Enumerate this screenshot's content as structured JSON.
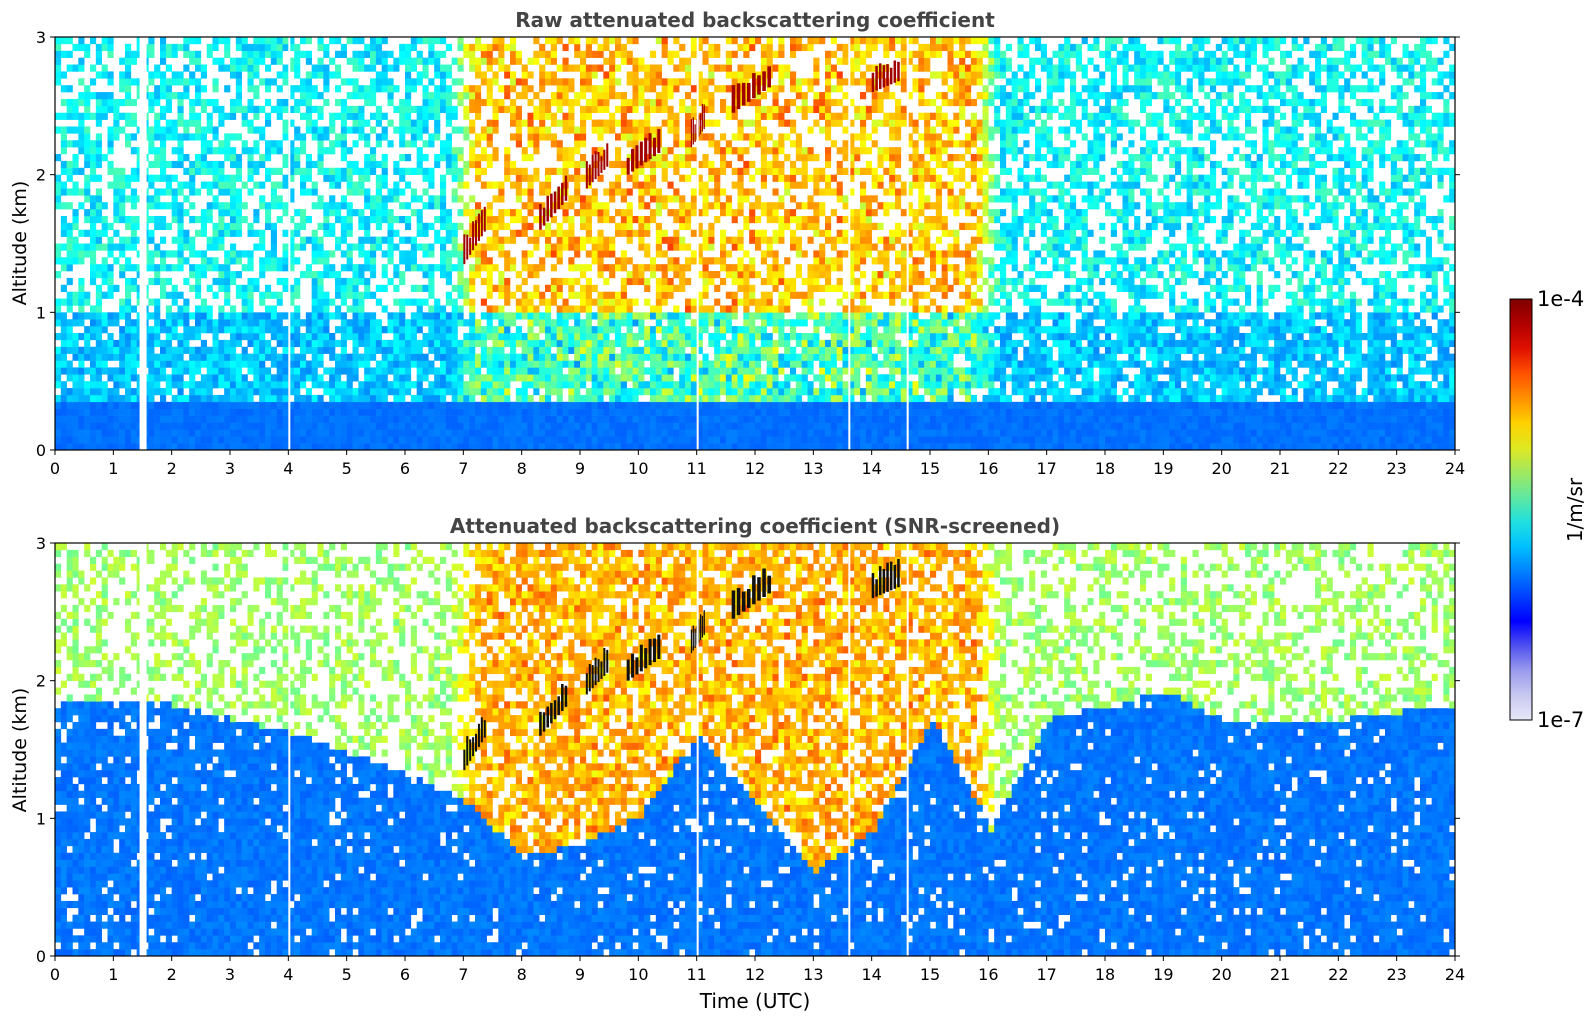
{
  "chart_data": [
    {
      "type": "heatmap",
      "title": "Raw attenuated backscattering coefficient",
      "xlabel": "",
      "ylabel": "Altitude (km)",
      "xlim": [
        0,
        24
      ],
      "ylim": [
        0,
        3
      ],
      "xticks": [
        "0",
        "1",
        "2",
        "3",
        "4",
        "5",
        "6",
        "7",
        "8",
        "9",
        "10",
        "11",
        "12",
        "13",
        "14",
        "15",
        "16",
        "17",
        "18",
        "19",
        "20",
        "21",
        "22",
        "23",
        "24"
      ],
      "yticks": [
        "0",
        "1",
        "2",
        "3"
      ],
      "colorscale": "jet",
      "cloud_layers": [
        {
          "start_time": 7.0,
          "end_time": 7.4,
          "alt_low": 1.35,
          "alt_high": 1.8
        },
        {
          "start_time": 8.3,
          "end_time": 8.8,
          "alt_low": 1.6,
          "alt_high": 2.0
        },
        {
          "start_time": 9.1,
          "end_time": 9.5,
          "alt_low": 1.9,
          "alt_high": 2.2
        },
        {
          "start_time": 9.8,
          "end_time": 10.4,
          "alt_low": 2.0,
          "alt_high": 2.3
        },
        {
          "start_time": 10.9,
          "end_time": 11.15,
          "alt_low": 2.2,
          "alt_high": 2.45
        },
        {
          "start_time": 11.6,
          "end_time": 12.3,
          "alt_low": 2.45,
          "alt_high": 2.8
        },
        {
          "start_time": 14.0,
          "end_time": 14.5,
          "alt_low": 2.6,
          "alt_high": 2.75
        }
      ],
      "data_gaps_time": [
        1.45,
        1.5,
        4.0,
        11.0,
        13.6,
        14.6
      ]
    },
    {
      "type": "heatmap",
      "title": "Attenuated backscattering coefficient (SNR-screened)",
      "xlabel": "Time (UTC)",
      "ylabel": "Altitude (km)",
      "xlim": [
        0,
        24
      ],
      "ylim": [
        0,
        3
      ],
      "xticks": [
        "0",
        "1",
        "2",
        "3",
        "4",
        "5",
        "6",
        "7",
        "8",
        "9",
        "10",
        "11",
        "12",
        "13",
        "14",
        "15",
        "16",
        "17",
        "18",
        "19",
        "20",
        "21",
        "22",
        "23",
        "24"
      ],
      "yticks": [
        "0",
        "1",
        "2",
        "3"
      ],
      "colorscale": "jet",
      "boundary_layer_top_km": [
        [
          0,
          1.85
        ],
        [
          2,
          1.8
        ],
        [
          4,
          1.6
        ],
        [
          6,
          1.3
        ],
        [
          7,
          1.1
        ],
        [
          8,
          0.7
        ],
        [
          9,
          0.8
        ],
        [
          10,
          1.0
        ],
        [
          11,
          1.6
        ],
        [
          12,
          1.1
        ],
        [
          13,
          0.6
        ],
        [
          14,
          0.9
        ],
        [
          15,
          1.7
        ],
        [
          16,
          0.9
        ],
        [
          17,
          1.7
        ],
        [
          18,
          1.8
        ],
        [
          19,
          1.9
        ],
        [
          20,
          1.7
        ],
        [
          22,
          1.7
        ],
        [
          24,
          1.8
        ]
      ]
    }
  ],
  "colorbar": {
    "label": "1/m/sr",
    "max_label": "1e-4",
    "min_label": "1e-7",
    "colors": [
      "#e8e8f8",
      "#c8c8f0",
      "#9a9aee",
      "#5050f0",
      "#0000ff",
      "#0040ff",
      "#0080ff",
      "#00c0ff",
      "#20e0e0",
      "#60e8a0",
      "#a0e860",
      "#e0e820",
      "#ffd000",
      "#ff9000",
      "#ff5000",
      "#e01000",
      "#b00000",
      "#800000"
    ]
  }
}
